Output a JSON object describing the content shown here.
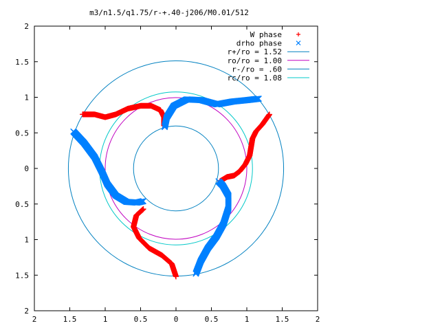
{
  "chart_data": {
    "type": "scatter",
    "title": "m3/n1.5/q1.75/r-+.40-j206/M0.01/512",
    "xlim": [
      -2,
      2
    ],
    "ylim": [
      -2,
      2
    ],
    "x_tick_labels": [
      "2",
      "1.5",
      "1",
      "0.5",
      "0",
      "0.5",
      "1",
      "1.5",
      "2"
    ],
    "x_tick_values": [
      -2,
      -1.5,
      -1,
      -0.5,
      0,
      0.5,
      1,
      1.5,
      2
    ],
    "y_tick_labels": [
      "2",
      "1.5",
      "1",
      "0.5",
      "0",
      "0.5",
      "1",
      "1.5",
      "2"
    ],
    "y_tick_values": [
      2,
      1.5,
      1,
      0.5,
      0,
      -0.5,
      -1,
      -1.5,
      -2
    ],
    "grid": false,
    "legend_position": "top-right",
    "series": [
      {
        "name": "W phase",
        "kind": "points",
        "marker": "plus",
        "color": "#ff0000",
        "arms": [
          [
            [
              1.32,
              0.76
            ],
            [
              1.22,
              0.62
            ],
            [
              1.13,
              0.52
            ],
            [
              1.08,
              0.42
            ],
            [
              1.06,
              0.3
            ],
            [
              1.04,
              0.18
            ],
            [
              0.98,
              0.06
            ],
            [
              0.9,
              -0.04
            ],
            [
              0.82,
              -0.1
            ],
            [
              0.72,
              -0.12
            ],
            [
              0.62,
              -0.18
            ]
          ],
          [
            [
              -1.32,
              0.76
            ],
            [
              -1.15,
              0.76
            ],
            [
              -1.0,
              0.72
            ],
            [
              -0.85,
              0.76
            ],
            [
              -0.68,
              0.84
            ],
            [
              -0.5,
              0.88
            ],
            [
              -0.35,
              0.88
            ],
            [
              -0.22,
              0.82
            ],
            [
              -0.17,
              0.72
            ],
            [
              -0.17,
              0.6
            ]
          ],
          [
            [
              0.0,
              -1.52
            ],
            [
              -0.06,
              -1.34
            ],
            [
              -0.2,
              -1.22
            ],
            [
              -0.38,
              -1.12
            ],
            [
              -0.52,
              -0.98
            ],
            [
              -0.6,
              -0.82
            ],
            [
              -0.56,
              -0.66
            ],
            [
              -0.46,
              -0.57
            ]
          ]
        ]
      },
      {
        "name": "drho phase",
        "kind": "points",
        "marker": "cross",
        "color": "#0080ff",
        "arms": [
          [
            [
              -1.45,
              0.52
            ],
            [
              -1.3,
              0.36
            ],
            [
              -1.15,
              0.16
            ],
            [
              -1.05,
              -0.04
            ],
            [
              -0.97,
              -0.22
            ],
            [
              -0.85,
              -0.38
            ],
            [
              -0.7,
              -0.47
            ],
            [
              -0.55,
              -0.48
            ],
            [
              -0.46,
              -0.46
            ]
          ],
          [
            [
              0.28,
              -1.48
            ],
            [
              0.35,
              -1.3
            ],
            [
              0.45,
              -1.12
            ],
            [
              0.57,
              -0.96
            ],
            [
              0.67,
              -0.78
            ],
            [
              0.74,
              -0.56
            ],
            [
              0.74,
              -0.38
            ],
            [
              0.66,
              -0.24
            ],
            [
              0.6,
              -0.18
            ]
          ],
          [
            [
              -0.16,
              0.58
            ],
            [
              -0.13,
              0.72
            ],
            [
              -0.03,
              0.88
            ],
            [
              0.15,
              0.97
            ],
            [
              0.36,
              0.96
            ],
            [
              0.58,
              0.9
            ],
            [
              0.8,
              0.94
            ],
            [
              1.0,
              0.96
            ],
            [
              1.17,
              0.98
            ]
          ]
        ]
      },
      {
        "name": "r+/ro = 1.52",
        "kind": "circle",
        "r": 1.52,
        "color": "#0080c0"
      },
      {
        "name": "ro/ro = 1.00",
        "kind": "circle",
        "r": 1.0,
        "color": "#c000c0"
      },
      {
        "name": "r-/ro = .60",
        "kind": "circle",
        "r": 0.6,
        "color": "#0080c0"
      },
      {
        "name": "rc/ro = 1.08",
        "kind": "circle",
        "r": 1.08,
        "color": "#00c8c8"
      }
    ]
  }
}
